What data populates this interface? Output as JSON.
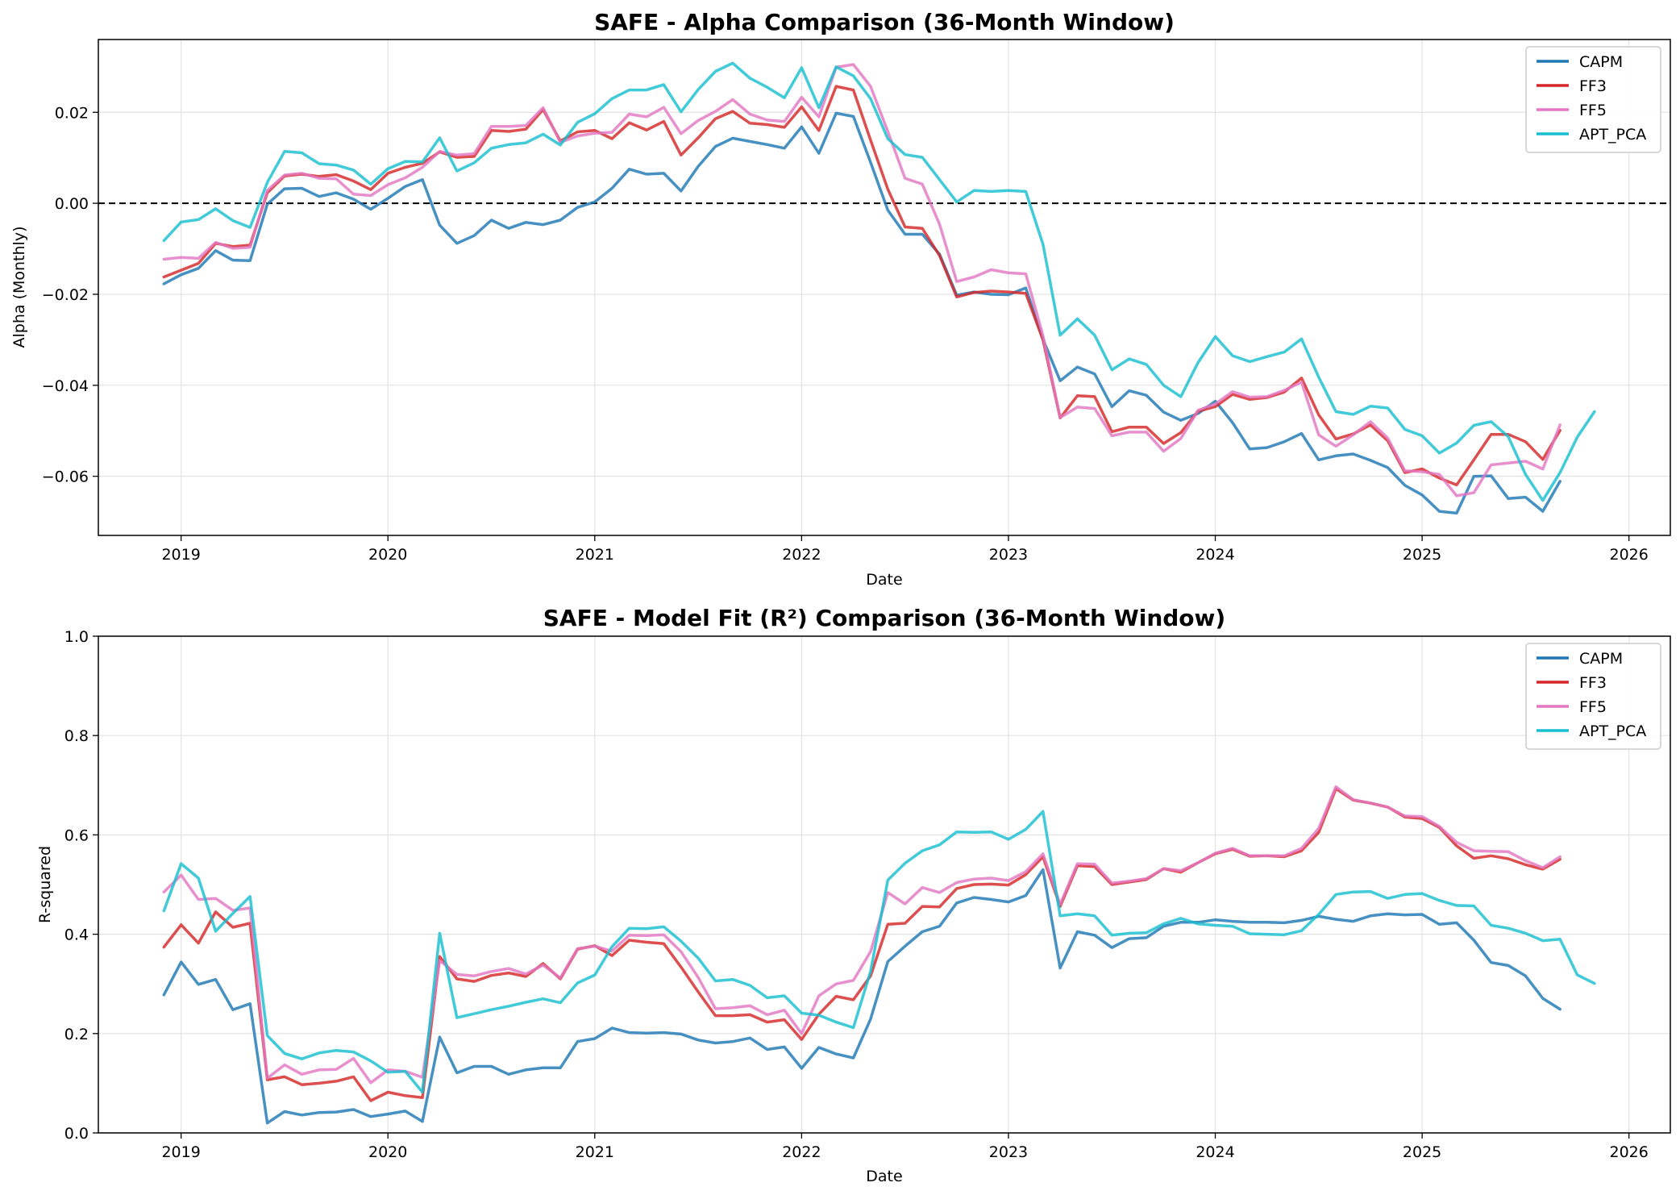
{
  "chart_data": [
    {
      "type": "line",
      "title": "SAFE - Alpha Comparison (36-Month Window)",
      "xlabel": "Date",
      "ylabel": "Alpha (Monthly)",
      "xlim": [
        2018.6,
        2026.2
      ],
      "ylim": [
        -0.073,
        0.036
      ],
      "x_ticks": [
        "2019",
        "2020",
        "2021",
        "2022",
        "2023",
        "2024",
        "2025",
        "2026"
      ],
      "y_ticks": [
        "−0.06",
        "−0.04",
        "−0.02",
        "0.00",
        "0.02"
      ],
      "grid": true,
      "legend": "top-right",
      "reference_line": 0,
      "x_start": 2018.917,
      "x_step": 0.08333,
      "series": [
        {
          "name": "CAPM",
          "color": "#1f77b4",
          "values": [
            -0.0177,
            -0.0157,
            -0.0143,
            -0.0104,
            -0.0125,
            -0.0126,
            -0.0002,
            0.0032,
            0.0033,
            0.0015,
            0.0023,
            0.0009,
            -0.0013,
            0.0011,
            0.0037,
            0.0052,
            -0.0048,
            -0.0088,
            -0.0071,
            -0.0037,
            -0.0055,
            -0.0042,
            -0.0047,
            -0.0037,
            -0.0009,
            0.0003,
            0.0033,
            0.0075,
            0.0064,
            0.0066,
            0.0027,
            0.0081,
            0.0125,
            0.0143,
            0.0136,
            0.0129,
            0.0121,
            0.0168,
            0.011,
            0.0198,
            0.0191,
            0.009,
            -0.0015,
            -0.0068,
            -0.0068,
            -0.0112,
            -0.0202,
            -0.0195,
            -0.02,
            -0.0201,
            -0.0186,
            -0.0299,
            -0.039,
            -0.036,
            -0.0375,
            -0.0447,
            -0.0412,
            -0.0422,
            -0.0459,
            -0.0477,
            -0.0462,
            -0.0435,
            -0.0482,
            -0.054,
            -0.0537,
            -0.0524,
            -0.0506,
            -0.0564,
            -0.0555,
            -0.0551,
            -0.0565,
            -0.0581,
            -0.062,
            -0.0641,
            -0.0677,
            -0.0681,
            -0.06,
            -0.0599,
            -0.0649,
            -0.0646,
            -0.0677,
            -0.0611
          ]
        },
        {
          "name": "FF3",
          "color": "#d62728",
          "values": [
            -0.0162,
            -0.0147,
            -0.0132,
            -0.0088,
            -0.0095,
            -0.0092,
            0.0023,
            0.006,
            0.0064,
            0.0059,
            0.0063,
            0.0049,
            0.003,
            0.0066,
            0.0079,
            0.0088,
            0.0113,
            0.0101,
            0.0103,
            0.016,
            0.0158,
            0.0163,
            0.0206,
            0.0137,
            0.0157,
            0.016,
            0.0142,
            0.0177,
            0.0161,
            0.018,
            0.0106,
            0.0144,
            0.0186,
            0.0202,
            0.0176,
            0.0173,
            0.0167,
            0.0212,
            0.016,
            0.0257,
            0.0249,
            0.0139,
            0.0031,
            -0.0052,
            -0.0055,
            -0.0115,
            -0.0206,
            -0.0196,
            -0.0193,
            -0.0195,
            -0.0198,
            -0.03,
            -0.0472,
            -0.0423,
            -0.0425,
            -0.0502,
            -0.0492,
            -0.0492,
            -0.0528,
            -0.0504,
            -0.0457,
            -0.0447,
            -0.042,
            -0.0431,
            -0.0427,
            -0.0415,
            -0.0384,
            -0.0465,
            -0.0518,
            -0.0507,
            -0.0487,
            -0.0522,
            -0.0592,
            -0.0584,
            -0.0604,
            -0.0619,
            -0.0564,
            -0.0508,
            -0.0508,
            -0.0524,
            -0.0563,
            -0.0499
          ]
        },
        {
          "name": "FF5",
          "color": "#e377c2",
          "values": [
            -0.0123,
            -0.0119,
            -0.0121,
            -0.0086,
            -0.0099,
            -0.0097,
            0.0028,
            0.0062,
            0.0066,
            0.0055,
            0.0054,
            0.002,
            0.0017,
            0.0041,
            0.0056,
            0.0079,
            0.0114,
            0.0106,
            0.0109,
            0.0169,
            0.0169,
            0.0171,
            0.021,
            0.0134,
            0.0148,
            0.0154,
            0.0156,
            0.0196,
            0.019,
            0.0211,
            0.0153,
            0.0182,
            0.0202,
            0.0228,
            0.0196,
            0.0183,
            0.018,
            0.0233,
            0.019,
            0.0299,
            0.0305,
            0.0257,
            0.0158,
            0.0055,
            0.0042,
            -0.0046,
            -0.0172,
            -0.0162,
            -0.0146,
            -0.0153,
            -0.0155,
            -0.0291,
            -0.0471,
            -0.0448,
            -0.0451,
            -0.0511,
            -0.0503,
            -0.0503,
            -0.0545,
            -0.0517,
            -0.0455,
            -0.0441,
            -0.0414,
            -0.0426,
            -0.0425,
            -0.0411,
            -0.0393,
            -0.0509,
            -0.0534,
            -0.0509,
            -0.048,
            -0.0516,
            -0.0588,
            -0.059,
            -0.0596,
            -0.0643,
            -0.0636,
            -0.0575,
            -0.0571,
            -0.0567,
            -0.0584,
            -0.0487
          ]
        },
        {
          "name": "APT_PCA",
          "color": "#17becf",
          "values": [
            -0.0082,
            -0.0041,
            -0.0036,
            -0.0012,
            -0.0038,
            -0.0053,
            0.0046,
            0.0114,
            0.0111,
            0.0087,
            0.0084,
            0.0073,
            0.0042,
            0.0076,
            0.0092,
            0.0091,
            0.0144,
            0.0071,
            0.0089,
            0.0121,
            0.0129,
            0.0133,
            0.0152,
            0.0128,
            0.0178,
            0.0197,
            0.023,
            0.0249,
            0.0249,
            0.0261,
            0.0201,
            0.025,
            0.029,
            0.0308,
            0.0275,
            0.0255,
            0.0232,
            0.0298,
            0.021,
            0.03,
            0.028,
            0.023,
            0.0142,
            0.0107,
            0.0101,
            0.0052,
            0.0003,
            0.0028,
            0.0026,
            0.0028,
            0.0026,
            -0.009,
            -0.029,
            -0.0254,
            -0.029,
            -0.0366,
            -0.0342,
            -0.0354,
            -0.04,
            -0.0425,
            -0.035,
            -0.0293,
            -0.0335,
            -0.0348,
            -0.0337,
            -0.0327,
            -0.0298,
            -0.0382,
            -0.0458,
            -0.0464,
            -0.0446,
            -0.045,
            -0.0497,
            -0.0511,
            -0.0549,
            -0.0527,
            -0.0488,
            -0.048,
            -0.0513,
            -0.0596,
            -0.0653,
            -0.0592,
            -0.0514,
            -0.0458
          ]
        }
      ]
    },
    {
      "type": "line",
      "title": "SAFE - Model Fit (R²) Comparison (36-Month Window)",
      "xlabel": "Date",
      "ylabel": "R-squared",
      "xlim": [
        2018.6,
        2026.2
      ],
      "ylim": [
        0,
        1
      ],
      "x_ticks": [
        "2019",
        "2020",
        "2021",
        "2022",
        "2023",
        "2024",
        "2025",
        "2026"
      ],
      "y_ticks": [
        "0.0",
        "0.2",
        "0.4",
        "0.6",
        "0.8",
        "1.0"
      ],
      "grid": true,
      "legend": "top-right",
      "x_start": 2018.917,
      "x_step": 0.08333,
      "series": [
        {
          "name": "CAPM",
          "color": "#1f77b4",
          "values": [
            0.278,
            0.344,
            0.299,
            0.309,
            0.248,
            0.26,
            0.02,
            0.043,
            0.036,
            0.041,
            0.042,
            0.047,
            0.033,
            0.038,
            0.044,
            0.023,
            0.193,
            0.121,
            0.134,
            0.134,
            0.118,
            0.127,
            0.131,
            0.131,
            0.184,
            0.19,
            0.211,
            0.202,
            0.201,
            0.202,
            0.199,
            0.187,
            0.181,
            0.184,
            0.191,
            0.168,
            0.173,
            0.13,
            0.172,
            0.159,
            0.151,
            0.229,
            0.345,
            0.376,
            0.405,
            0.416,
            0.463,
            0.474,
            0.47,
            0.465,
            0.478,
            0.53,
            0.332,
            0.405,
            0.398,
            0.373,
            0.391,
            0.393,
            0.416,
            0.424,
            0.424,
            0.429,
            0.426,
            0.424,
            0.424,
            0.423,
            0.428,
            0.436,
            0.43,
            0.426,
            0.437,
            0.441,
            0.439,
            0.44,
            0.42,
            0.423,
            0.388,
            0.343,
            0.337,
            0.316,
            0.271,
            0.249
          ]
        },
        {
          "name": "FF3",
          "color": "#d62728",
          "values": [
            0.374,
            0.419,
            0.382,
            0.445,
            0.414,
            0.422,
            0.107,
            0.113,
            0.097,
            0.1,
            0.104,
            0.113,
            0.065,
            0.082,
            0.075,
            0.071,
            0.355,
            0.31,
            0.305,
            0.317,
            0.322,
            0.315,
            0.341,
            0.31,
            0.37,
            0.377,
            0.357,
            0.388,
            0.384,
            0.381,
            0.334,
            0.284,
            0.236,
            0.236,
            0.238,
            0.223,
            0.228,
            0.188,
            0.239,
            0.275,
            0.268,
            0.316,
            0.42,
            0.422,
            0.456,
            0.455,
            0.492,
            0.5,
            0.501,
            0.499,
            0.52,
            0.556,
            0.456,
            0.538,
            0.536,
            0.5,
            0.505,
            0.51,
            0.532,
            0.525,
            0.544,
            0.562,
            0.571,
            0.557,
            0.558,
            0.556,
            0.568,
            0.605,
            0.693,
            0.67,
            0.664,
            0.656,
            0.636,
            0.633,
            0.615,
            0.578,
            0.553,
            0.558,
            0.552,
            0.54,
            0.531,
            0.551
          ]
        },
        {
          "name": "FF5",
          "color": "#e377c2",
          "values": [
            0.485,
            0.519,
            0.47,
            0.472,
            0.448,
            0.453,
            0.11,
            0.137,
            0.118,
            0.127,
            0.128,
            0.15,
            0.101,
            0.127,
            0.124,
            0.112,
            0.347,
            0.319,
            0.316,
            0.325,
            0.331,
            0.32,
            0.338,
            0.312,
            0.371,
            0.376,
            0.366,
            0.398,
            0.397,
            0.399,
            0.365,
            0.313,
            0.25,
            0.252,
            0.256,
            0.238,
            0.247,
            0.2,
            0.276,
            0.3,
            0.307,
            0.365,
            0.484,
            0.461,
            0.494,
            0.484,
            0.504,
            0.511,
            0.513,
            0.508,
            0.526,
            0.562,
            0.46,
            0.542,
            0.541,
            0.503,
            0.507,
            0.512,
            0.532,
            0.528,
            0.544,
            0.563,
            0.573,
            0.558,
            0.558,
            0.558,
            0.573,
            0.613,
            0.697,
            0.671,
            0.664,
            0.656,
            0.638,
            0.637,
            0.617,
            0.585,
            0.568,
            0.567,
            0.566,
            0.548,
            0.534,
            0.556
          ]
        },
        {
          "name": "APT_PCA",
          "color": "#17becf",
          "values": [
            0.447,
            0.542,
            0.513,
            0.406,
            0.442,
            0.476,
            0.196,
            0.16,
            0.149,
            0.161,
            0.166,
            0.163,
            0.145,
            0.122,
            0.124,
            0.082,
            0.402,
            0.232,
            0.24,
            0.248,
            0.255,
            0.263,
            0.27,
            0.262,
            0.302,
            0.318,
            0.375,
            0.412,
            0.411,
            0.415,
            0.386,
            0.352,
            0.306,
            0.309,
            0.297,
            0.272,
            0.276,
            0.241,
            0.237,
            0.223,
            0.212,
            0.325,
            0.509,
            0.543,
            0.568,
            0.58,
            0.606,
            0.605,
            0.606,
            0.591,
            0.611,
            0.647,
            0.437,
            0.441,
            0.437,
            0.398,
            0.402,
            0.403,
            0.421,
            0.432,
            0.421,
            0.418,
            0.416,
            0.401,
            0.4,
            0.399,
            0.407,
            0.44,
            0.48,
            0.485,
            0.486,
            0.472,
            0.48,
            0.482,
            0.468,
            0.458,
            0.457,
            0.418,
            0.412,
            0.402,
            0.387,
            0.39,
            0.318,
            0.301
          ]
        }
      ]
    }
  ]
}
